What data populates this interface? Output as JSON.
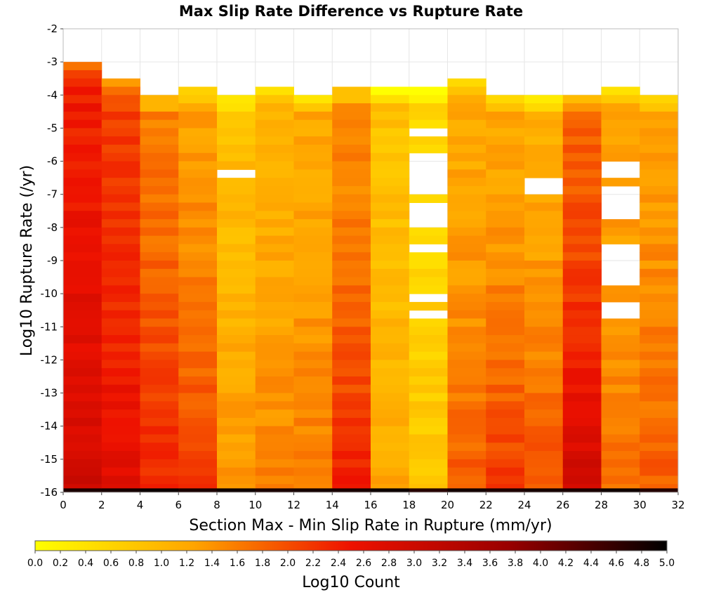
{
  "chart_data": {
    "type": "heatmap",
    "title": "Max Slip Rate Difference vs Rupture Rate",
    "xlabel": "Section Max - Min Slip Rate in Rupture (mm/yr)",
    "ylabel": "Log10 Rupture Rate (/yr)",
    "xlim": [
      0,
      32
    ],
    "ylim": [
      -16,
      -2
    ],
    "x_ticks": [
      "0",
      "2",
      "4",
      "6",
      "8",
      "10",
      "12",
      "14",
      "16",
      "18",
      "20",
      "22",
      "24",
      "26",
      "28",
      "30",
      "32"
    ],
    "y_ticks": [
      "-2",
      "-3",
      "-4",
      "-5",
      "-6",
      "-7",
      "-8",
      "-9",
      "-10",
      "-11",
      "-12",
      "-13",
      "-14",
      "-15",
      "-16"
    ],
    "x_bin_width": 2,
    "y_bin_height": 0.25,
    "columns_x_start": [
      0,
      2,
      4,
      6,
      8,
      10,
      12,
      14,
      16,
      18,
      20,
      22,
      24,
      26,
      28,
      30
    ],
    "columns_top": [
      -3.0,
      -3.5,
      -4.0,
      -3.75,
      -4.0,
      -3.75,
      -4.0,
      -3.75,
      -3.75,
      -3.75,
      -3.5,
      -4.0,
      -4.0,
      -4.0,
      -3.75,
      -4.0
    ],
    "columns_base_log10_count": [
      2.4,
      2.1,
      1.6,
      1.3,
      0.9,
      1.05,
      1.2,
      1.45,
      0.85,
      0.55,
      1.15,
      1.2,
      1.1,
      1.8,
      1.2,
      1.3
    ],
    "columns_bottom_log10_count": [
      3.0,
      2.7,
      2.4,
      2.2,
      1.4,
      1.6,
      1.6,
      2.4,
      1.2,
      0.8,
      1.9,
      2.2,
      2.0,
      3.0,
      1.7,
      1.9
    ],
    "bottom_row": {
      "y": [
        -16.0,
        -15.88
      ],
      "log10_count": 4.8
    },
    "empty_bins": [
      {
        "x": [
          8,
          10
        ],
        "y": [
          -6.5,
          -6.25
        ]
      },
      {
        "x": [
          18,
          20
        ],
        "y": [
          -5.25,
          -5.0
        ]
      },
      {
        "x": [
          18,
          20
        ],
        "y": [
          -7.0,
          -5.75
        ]
      },
      {
        "x": [
          18,
          20
        ],
        "y": [
          -8.0,
          -7.25
        ]
      },
      {
        "x": [
          18,
          20
        ],
        "y": [
          -8.75,
          -8.5
        ]
      },
      {
        "x": [
          18,
          20
        ],
        "y": [
          -10.25,
          -10.0
        ]
      },
      {
        "x": [
          18,
          20
        ],
        "y": [
          -10.75,
          -10.5
        ]
      },
      {
        "x": [
          24,
          26
        ],
        "y": [
          -7.0,
          -6.5
        ]
      },
      {
        "x": [
          28,
          30
        ],
        "y": [
          -6.5,
          -6.0
        ]
      },
      {
        "x": [
          28,
          30
        ],
        "y": [
          -7.75,
          -6.75
        ]
      },
      {
        "x": [
          28,
          30
        ],
        "y": [
          -9.75,
          -8.5
        ]
      },
      {
        "x": [
          28,
          30
        ],
        "y": [
          -10.75,
          -10.25
        ]
      }
    ],
    "colorbar": {
      "label": "Log10 Count",
      "range": [
        0.0,
        5.0
      ],
      "tick_labels": [
        "0.0",
        "0.2",
        "0.4",
        "0.6",
        "0.8",
        "1.0",
        "1.2",
        "1.4",
        "1.6",
        "1.8",
        "2.0",
        "2.2",
        "2.4",
        "2.6",
        "2.8",
        "3.0",
        "3.2",
        "3.4",
        "3.6",
        "3.8",
        "4.0",
        "4.2",
        "4.4",
        "4.6",
        "4.8",
        "5.0"
      ],
      "colors": [
        "#ffff00",
        "#ffa500",
        "#ee1100",
        "#990000",
        "#000000"
      ]
    },
    "grid": true,
    "legend_placement": "bottom"
  }
}
